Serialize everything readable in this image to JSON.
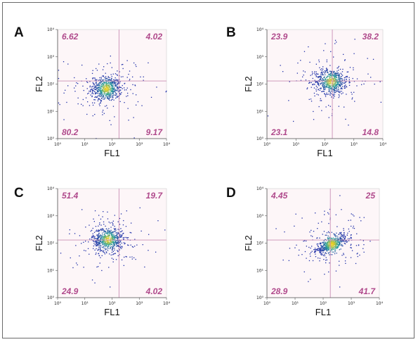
{
  "colors": {
    "gate": "#c98fb5",
    "quadrant_text": "#b04a8c",
    "plot_background": "#fdf6f8",
    "density_low": "#1f2fa8",
    "density_mid": "#2aa59a",
    "density_high": "#f0d020"
  },
  "chart_data": [
    {
      "type": "scatter",
      "panel": "A",
      "xlabel": "FL1",
      "ylabel": "FL2",
      "xscale": "log",
      "yscale": "log",
      "xlim": [
        1,
        10000
      ],
      "ylim": [
        1,
        10000
      ],
      "xticks": [
        "10⁰",
        "10¹",
        "10²",
        "10³",
        "10⁴"
      ],
      "yticks": [
        "10⁰",
        "10¹",
        "10²",
        "10³",
        "10⁴"
      ],
      "gate": {
        "x": 180,
        "y": 130
      },
      "quadrants": {
        "upper_left": "6.62",
        "upper_right": "4.02",
        "lower_left": "80.2",
        "lower_right": "9.17"
      },
      "population_center": {
        "x": 60,
        "y": 70
      }
    },
    {
      "type": "scatter",
      "panel": "B",
      "xlabel": "FL1",
      "ylabel": "FL2",
      "xscale": "log",
      "yscale": "log",
      "xlim": [
        1,
        10000
      ],
      "ylim": [
        1,
        10000
      ],
      "xticks": [
        "10⁰",
        "10¹",
        "10²",
        "10³",
        "10⁴"
      ],
      "yticks": [
        "10⁰",
        "10¹",
        "10²",
        "10³",
        "10⁴"
      ],
      "gate": {
        "x": 180,
        "y": 130
      },
      "quadrants": {
        "upper_left": "23.9",
        "upper_right": "38.2",
        "lower_left": "23.1",
        "lower_right": "14.8"
      },
      "population_center": {
        "x": 160,
        "y": 130
      }
    },
    {
      "type": "scatter",
      "panel": "C",
      "xlabel": "FL1",
      "ylabel": "FL2",
      "xscale": "log",
      "yscale": "log",
      "xlim": [
        1,
        10000
      ],
      "ylim": [
        1,
        10000
      ],
      "xticks": [
        "10⁰",
        "10¹",
        "10²",
        "10³",
        "10⁴"
      ],
      "yticks": [
        "10⁰",
        "10¹",
        "10²",
        "10³",
        "10⁴"
      ],
      "gate": {
        "x": 180,
        "y": 130
      },
      "quadrants": {
        "upper_left": "51.4",
        "upper_right": "19.7",
        "lower_left": "24.9",
        "lower_right": "4.02"
      },
      "population_center": {
        "x": 70,
        "y": 140
      }
    },
    {
      "type": "scatter",
      "panel": "D",
      "xlabel": "FL1",
      "ylabel": "FL2",
      "xscale": "log",
      "yscale": "log",
      "xlim": [
        1,
        10000
      ],
      "ylim": [
        1,
        10000
      ],
      "xticks": [
        "10⁰",
        "10¹",
        "10²",
        "10³",
        "10⁴"
      ],
      "yticks": [
        "10⁰",
        "10¹",
        "10²",
        "10³",
        "10⁴"
      ],
      "gate": {
        "x": 180,
        "y": 130
      },
      "quadrants": {
        "upper_left": "4.45",
        "upper_right": "25",
        "lower_left": "28.9",
        "lower_right": "41.7"
      },
      "population_center": {
        "x": 200,
        "y": 95
      }
    }
  ]
}
